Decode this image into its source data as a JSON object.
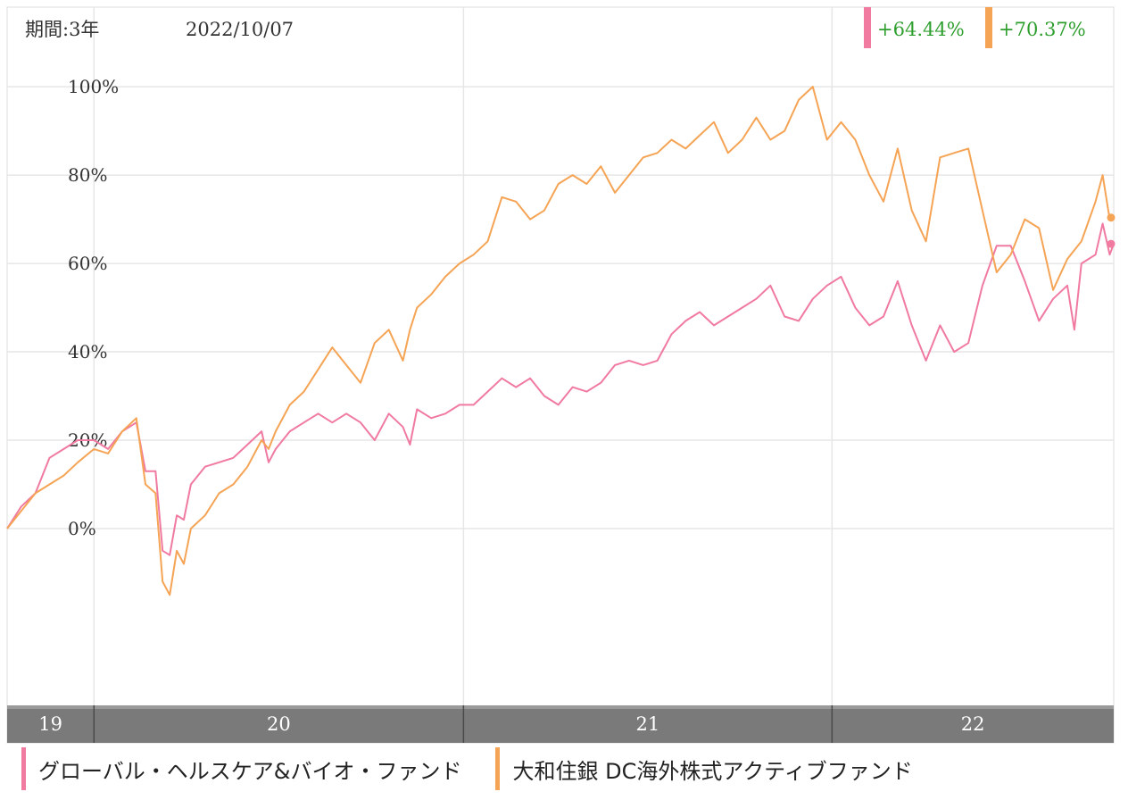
{
  "header": {
    "period_label": "期間:3年",
    "date": "2022/10/07"
  },
  "returns": [
    {
      "value": "+64.44%",
      "color": "#f07aa0"
    },
    {
      "value": "+70.37%",
      "color": "#f5a455"
    }
  ],
  "chart_data": {
    "type": "line",
    "yticks": [
      "100%",
      "80%",
      "60%",
      "40%",
      "20%",
      "0%"
    ],
    "ytick_values": [
      100,
      80,
      60,
      40,
      20,
      0
    ],
    "ylim": [
      -40,
      118
    ],
    "x_range": [
      "2019-10-07",
      "2022-10-07"
    ],
    "year_bands": [
      {
        "label": "19",
        "start": "2019-10-07",
        "end": "2020-01-01"
      },
      {
        "label": "20",
        "start": "2020-01-01",
        "end": "2021-01-01"
      },
      {
        "label": "21",
        "start": "2021-01-01",
        "end": "2022-01-01"
      },
      {
        "label": "22",
        "start": "2022-01-01",
        "end": "2022-10-07"
      }
    ],
    "grid": true,
    "series": [
      {
        "name": "グローバル・ヘルスケア&バイオ・ファンド",
        "color": "#f07aa0",
        "end_value": 64.44,
        "points": [
          [
            "2019-10-07",
            0
          ],
          [
            "2019-10-21",
            5
          ],
          [
            "2019-11-04",
            8
          ],
          [
            "2019-11-18",
            16
          ],
          [
            "2019-12-02",
            18
          ],
          [
            "2019-12-16",
            20
          ],
          [
            "2020-01-01",
            20
          ],
          [
            "2020-01-15",
            18
          ],
          [
            "2020-01-29",
            22
          ],
          [
            "2020-02-12",
            24
          ],
          [
            "2020-02-21",
            13
          ],
          [
            "2020-03-02",
            13
          ],
          [
            "2020-03-09",
            -5
          ],
          [
            "2020-03-16",
            -6
          ],
          [
            "2020-03-23",
            3
          ],
          [
            "2020-03-30",
            2
          ],
          [
            "2020-04-06",
            10
          ],
          [
            "2020-04-20",
            14
          ],
          [
            "2020-05-04",
            15
          ],
          [
            "2020-05-18",
            16
          ],
          [
            "2020-06-01",
            19
          ],
          [
            "2020-06-15",
            22
          ],
          [
            "2020-06-22",
            15
          ],
          [
            "2020-06-29",
            18
          ],
          [
            "2020-07-13",
            22
          ],
          [
            "2020-07-27",
            24
          ],
          [
            "2020-08-10",
            26
          ],
          [
            "2020-08-24",
            24
          ],
          [
            "2020-09-07",
            26
          ],
          [
            "2020-09-21",
            24
          ],
          [
            "2020-10-05",
            20
          ],
          [
            "2020-10-19",
            26
          ],
          [
            "2020-11-02",
            23
          ],
          [
            "2020-11-09",
            19
          ],
          [
            "2020-11-16",
            27
          ],
          [
            "2020-11-30",
            25
          ],
          [
            "2020-12-14",
            26
          ],
          [
            "2020-12-28",
            28
          ],
          [
            "2021-01-11",
            28
          ],
          [
            "2021-01-25",
            31
          ],
          [
            "2021-02-08",
            34
          ],
          [
            "2021-02-22",
            32
          ],
          [
            "2021-03-08",
            34
          ],
          [
            "2021-03-22",
            30
          ],
          [
            "2021-04-05",
            28
          ],
          [
            "2021-04-19",
            32
          ],
          [
            "2021-05-03",
            31
          ],
          [
            "2021-05-17",
            33
          ],
          [
            "2021-05-31",
            37
          ],
          [
            "2021-06-14",
            38
          ],
          [
            "2021-06-28",
            37
          ],
          [
            "2021-07-12",
            38
          ],
          [
            "2021-07-26",
            44
          ],
          [
            "2021-08-09",
            47
          ],
          [
            "2021-08-23",
            49
          ],
          [
            "2021-09-06",
            46
          ],
          [
            "2021-09-20",
            48
          ],
          [
            "2021-10-04",
            50
          ],
          [
            "2021-10-18",
            52
          ],
          [
            "2021-11-01",
            55
          ],
          [
            "2021-11-15",
            48
          ],
          [
            "2021-11-29",
            47
          ],
          [
            "2021-12-13",
            52
          ],
          [
            "2021-12-27",
            55
          ],
          [
            "2022-01-10",
            57
          ],
          [
            "2022-01-24",
            50
          ],
          [
            "2022-02-07",
            46
          ],
          [
            "2022-02-21",
            48
          ],
          [
            "2022-03-07",
            56
          ],
          [
            "2022-03-21",
            46
          ],
          [
            "2022-04-04",
            38
          ],
          [
            "2022-04-18",
            46
          ],
          [
            "2022-05-02",
            40
          ],
          [
            "2022-05-16",
            42
          ],
          [
            "2022-05-30",
            55
          ],
          [
            "2022-06-13",
            64
          ],
          [
            "2022-06-27",
            64
          ],
          [
            "2022-07-11",
            56
          ],
          [
            "2022-07-25",
            47
          ],
          [
            "2022-08-08",
            52
          ],
          [
            "2022-08-22",
            55
          ],
          [
            "2022-08-29",
            45
          ],
          [
            "2022-09-05",
            60
          ],
          [
            "2022-09-19",
            62
          ],
          [
            "2022-09-26",
            69
          ],
          [
            "2022-10-03",
            62
          ],
          [
            "2022-10-07",
            64.44
          ]
        ]
      },
      {
        "name": "大和住銀 DC海外株式アクティブファンド",
        "color": "#f5a455",
        "end_value": 70.37,
        "points": [
          [
            "2019-10-07",
            0
          ],
          [
            "2019-10-21",
            4
          ],
          [
            "2019-11-04",
            8
          ],
          [
            "2019-11-18",
            10
          ],
          [
            "2019-12-02",
            12
          ],
          [
            "2019-12-16",
            15
          ],
          [
            "2020-01-01",
            18
          ],
          [
            "2020-01-15",
            17
          ],
          [
            "2020-01-29",
            22
          ],
          [
            "2020-02-12",
            25
          ],
          [
            "2020-02-21",
            10
          ],
          [
            "2020-03-02",
            8
          ],
          [
            "2020-03-09",
            -12
          ],
          [
            "2020-03-16",
            -15
          ],
          [
            "2020-03-23",
            -5
          ],
          [
            "2020-03-30",
            -8
          ],
          [
            "2020-04-06",
            0
          ],
          [
            "2020-04-20",
            3
          ],
          [
            "2020-05-04",
            8
          ],
          [
            "2020-05-18",
            10
          ],
          [
            "2020-06-01",
            14
          ],
          [
            "2020-06-15",
            20
          ],
          [
            "2020-06-22",
            18
          ],
          [
            "2020-06-29",
            22
          ],
          [
            "2020-07-13",
            28
          ],
          [
            "2020-07-27",
            31
          ],
          [
            "2020-08-10",
            36
          ],
          [
            "2020-08-24",
            41
          ],
          [
            "2020-09-07",
            37
          ],
          [
            "2020-09-21",
            33
          ],
          [
            "2020-10-05",
            42
          ],
          [
            "2020-10-19",
            45
          ],
          [
            "2020-11-02",
            38
          ],
          [
            "2020-11-09",
            45
          ],
          [
            "2020-11-16",
            50
          ],
          [
            "2020-11-30",
            53
          ],
          [
            "2020-12-14",
            57
          ],
          [
            "2020-12-28",
            60
          ],
          [
            "2021-01-11",
            62
          ],
          [
            "2021-01-25",
            65
          ],
          [
            "2021-02-08",
            75
          ],
          [
            "2021-02-22",
            74
          ],
          [
            "2021-03-08",
            70
          ],
          [
            "2021-03-22",
            72
          ],
          [
            "2021-04-05",
            78
          ],
          [
            "2021-04-19",
            80
          ],
          [
            "2021-05-03",
            78
          ],
          [
            "2021-05-17",
            82
          ],
          [
            "2021-05-31",
            76
          ],
          [
            "2021-06-14",
            80
          ],
          [
            "2021-06-28",
            84
          ],
          [
            "2021-07-12",
            85
          ],
          [
            "2021-07-26",
            88
          ],
          [
            "2021-08-09",
            86
          ],
          [
            "2021-08-23",
            89
          ],
          [
            "2021-09-06",
            92
          ],
          [
            "2021-09-20",
            85
          ],
          [
            "2021-10-04",
            88
          ],
          [
            "2021-10-18",
            93
          ],
          [
            "2021-11-01",
            88
          ],
          [
            "2021-11-15",
            90
          ],
          [
            "2021-11-29",
            97
          ],
          [
            "2021-12-13",
            100
          ],
          [
            "2021-12-27",
            88
          ],
          [
            "2022-01-10",
            92
          ],
          [
            "2022-01-24",
            88
          ],
          [
            "2022-02-07",
            80
          ],
          [
            "2022-02-21",
            74
          ],
          [
            "2022-03-07",
            86
          ],
          [
            "2022-03-21",
            72
          ],
          [
            "2022-04-04",
            65
          ],
          [
            "2022-04-18",
            84
          ],
          [
            "2022-05-02",
            85
          ],
          [
            "2022-05-16",
            86
          ],
          [
            "2022-05-30",
            72
          ],
          [
            "2022-06-13",
            58
          ],
          [
            "2022-06-27",
            62
          ],
          [
            "2022-07-11",
            70
          ],
          [
            "2022-07-25",
            68
          ],
          [
            "2022-08-08",
            54
          ],
          [
            "2022-08-22",
            61
          ],
          [
            "2022-09-05",
            65
          ],
          [
            "2022-09-19",
            74
          ],
          [
            "2022-09-26",
            80
          ],
          [
            "2022-10-03",
            70
          ],
          [
            "2022-10-07",
            70.37
          ]
        ]
      }
    ]
  },
  "legend": [
    {
      "label": "グローバル・ヘルスケア&バイオ・ファンド",
      "color": "#f07aa0"
    },
    {
      "label": "大和住銀 DC海外株式アクティブファンド",
      "color": "#f5a455"
    }
  ]
}
